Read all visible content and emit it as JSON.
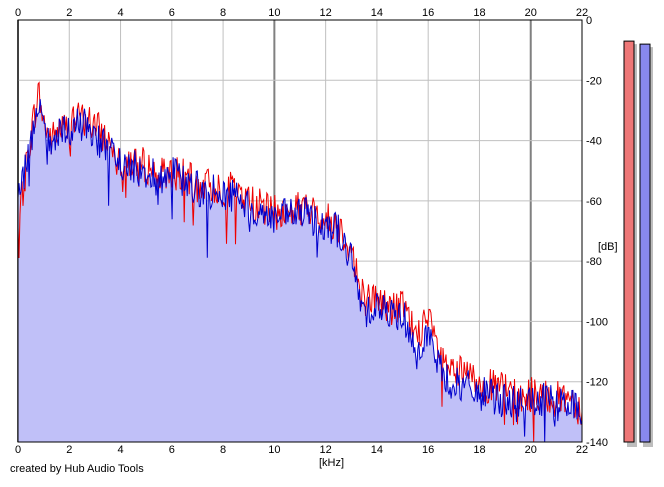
{
  "credit": "created by Hub Audio Tools",
  "chart_data": {
    "type": "area",
    "xlabel": "[kHz]",
    "ylabel": "[dB]",
    "xlim": [
      0,
      22
    ],
    "ylim": [
      -140,
      0
    ],
    "x_ticks": [
      "0",
      "2",
      "4",
      "6",
      "8",
      "10",
      "12",
      "14",
      "16",
      "18",
      "20",
      "22"
    ],
    "y_ticks": [
      "0",
      "-20",
      "-40",
      "-60",
      "-80",
      "-100",
      "-120",
      "-140"
    ],
    "grid": true,
    "series": [
      {
        "color": "#ee0000",
        "x": [
          0,
          0.3,
          0.5,
          0.8,
          1.0,
          1.3,
          1.6,
          2.0,
          2.4,
          2.8,
          3.2,
          3.6,
          4.0,
          4.5,
          5.0,
          5.5,
          6.0,
          6.5,
          7.0,
          7.5,
          8.0,
          8.5,
          9.0,
          9.5,
          10.0,
          10.5,
          11.0,
          11.5,
          12.0,
          12.5,
          13.0,
          13.3,
          13.6,
          14.0,
          14.5,
          15.0,
          15.5,
          16.0,
          16.5,
          17.0,
          17.5,
          18.0,
          18.5,
          19.0,
          19.5,
          20.0,
          20.5,
          21.0,
          21.5,
          22.0
        ],
        "values": [
          -70,
          -50,
          -38,
          -24,
          -34,
          -40,
          -36,
          -36,
          -32,
          -34,
          -37,
          -41,
          -46,
          -47,
          -48,
          -52,
          -50,
          -52,
          -55,
          -55,
          -56,
          -56,
          -60,
          -62,
          -64,
          -64,
          -62,
          -64,
          -66,
          -68,
          -76,
          -88,
          -93,
          -92,
          -96,
          -95,
          -104,
          -100,
          -112,
          -117,
          -118,
          -120,
          -122,
          -122,
          -126,
          -124,
          -124,
          -126,
          -124,
          -130
        ]
      },
      {
        "color": "#0000cc",
        "x": [
          0,
          0.3,
          0.5,
          0.8,
          1.0,
          1.3,
          1.6,
          2.0,
          2.4,
          2.8,
          3.2,
          3.6,
          4.0,
          4.5,
          5.0,
          5.5,
          6.0,
          6.5,
          7.0,
          7.5,
          8.0,
          8.5,
          9.0,
          9.5,
          10.0,
          10.5,
          11.0,
          11.5,
          12.0,
          12.5,
          13.0,
          13.3,
          13.6,
          14.0,
          14.5,
          15.0,
          15.5,
          16.0,
          16.5,
          17.0,
          17.5,
          18.0,
          18.5,
          19.0,
          19.5,
          20.0,
          20.5,
          21.0,
          21.5,
          22.0
        ],
        "values": [
          -58,
          -48,
          -40,
          -30,
          -36,
          -42,
          -38,
          -38,
          -34,
          -36,
          -40,
          -44,
          -48,
          -49,
          -50,
          -53,
          -50,
          -54,
          -56,
          -57,
          -58,
          -58,
          -62,
          -64,
          -66,
          -65,
          -64,
          -66,
          -67,
          -70,
          -80,
          -92,
          -96,
          -94,
          -98,
          -97,
          -108,
          -104,
          -117,
          -121,
          -122,
          -124,
          -125,
          -126,
          -128,
          -127,
          -126,
          -128,
          -127,
          -130
        ]
      }
    ],
    "level_meters": [
      {
        "color": "#ee7777",
        "level_db": -7
      },
      {
        "color": "#8888ee",
        "level_db": -8
      }
    ]
  }
}
